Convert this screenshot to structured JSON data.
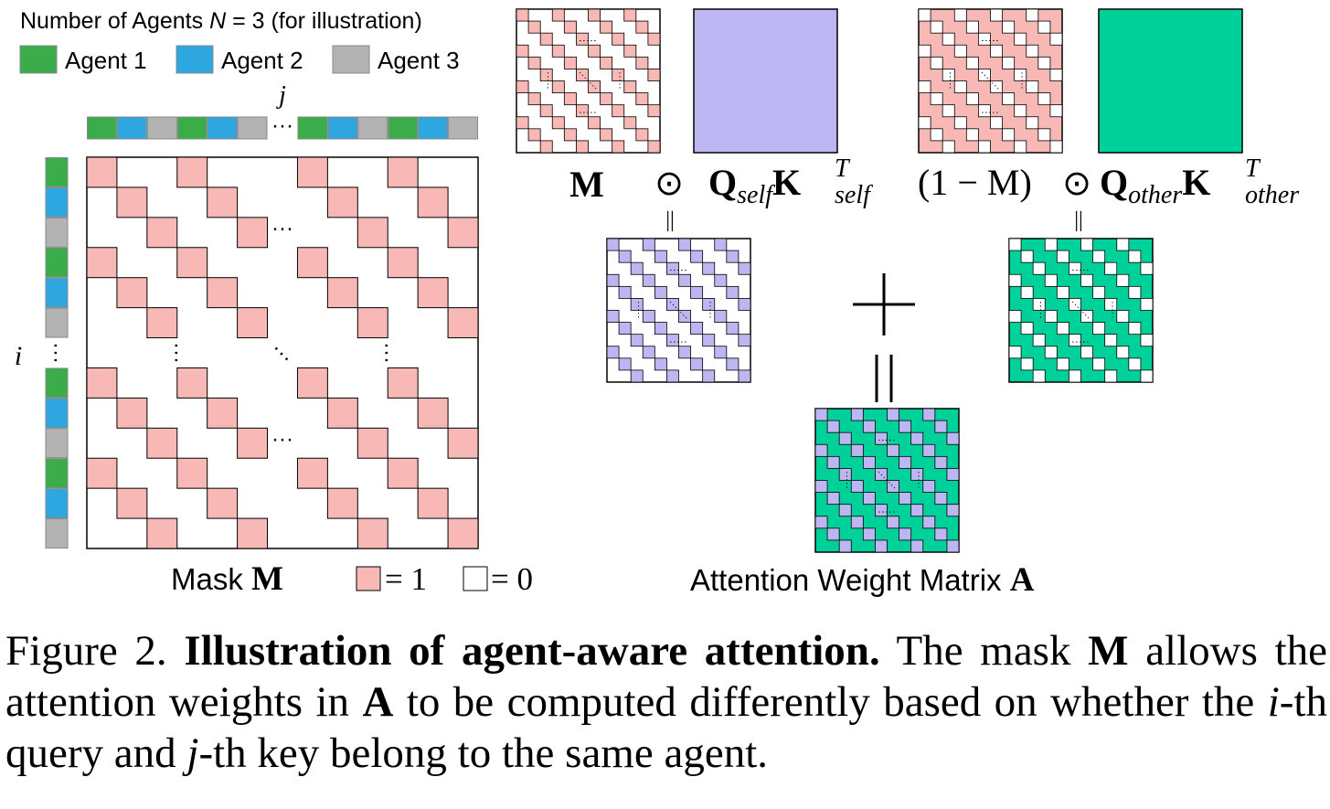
{
  "legend": {
    "title_prefix": "Number of Agents ",
    "title_var": "N",
    "title_suffix": " = 3 (for illustration)",
    "agents": [
      {
        "label": "Agent 1",
        "color": "#3aad4a"
      },
      {
        "label": "Agent 2",
        "color": "#2ea6df"
      },
      {
        "label": "Agent 3",
        "color": "#b3b3b3"
      }
    ]
  },
  "colors": {
    "mask_cell": "#f7b8b6",
    "self_attention": "#bcb6f2",
    "other_attention": "#00d19a",
    "border": "#000000"
  },
  "mask": {
    "axis_i": "i",
    "axis_j": "j",
    "ellipsis": "···",
    "label_text": "Mask ",
    "label_symbol": "M",
    "one_label": "= 1",
    "zero_label": "= 0"
  },
  "formula": {
    "m": "M",
    "odot": "⊙",
    "q_self": "Q",
    "self_sub": "self",
    "k_self": "K",
    "t_sup": "T",
    "one_minus_m": "(1 − M)",
    "q_other": "Q",
    "other_sub": "other",
    "k_other": "K",
    "equals_small": "||",
    "plus": "+",
    "equals_large": "||"
  },
  "result": {
    "label_text": "Attention Weight Matrix ",
    "label_symbol": "A"
  },
  "caption": {
    "figure_label": "Figure 2. ",
    "bold_title": "Illustration of agent-aware attention.",
    "part1": " The mask ",
    "m_symbol": "M",
    "part2": " allows the attention weights in ",
    "a_symbol": "A",
    "part3": " to be computed differently based on whether the ",
    "i_var": "i",
    "part4": "-th query and ",
    "j_var": "j",
    "part5": "-th key belong to the same agent."
  }
}
